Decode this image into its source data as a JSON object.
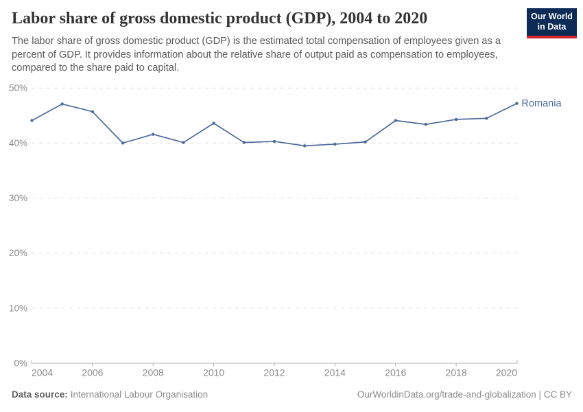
{
  "header": {
    "title": "Labor share of gross domestic product (GDP), 2004 to 2020",
    "subtitle": "The labor share of gross domestic product (GDP) is the estimated total compensation of employees given as a percent of GDP. It provides information about the relative share of output paid as compensation to employees, compared to the share paid to capital.",
    "logo": {
      "line1": "Our World",
      "line2": "in Data"
    }
  },
  "chart_data": {
    "type": "line",
    "title": "Labor share of gross domestic product (GDP), 2004 to 2020",
    "x": [
      2004,
      2005,
      2006,
      2007,
      2008,
      2009,
      2010,
      2011,
      2012,
      2013,
      2014,
      2015,
      2016,
      2017,
      2018,
      2019,
      2020
    ],
    "series": [
      {
        "name": "Romania",
        "color": "#4c6a9c",
        "values": [
          44.1,
          47.1,
          45.7,
          40.0,
          41.6,
          40.1,
          43.6,
          40.1,
          40.3,
          39.5,
          39.8,
          40.2,
          44.1,
          43.4,
          44.3,
          44.5,
          47.2
        ]
      }
    ],
    "x_ticks": [
      2004,
      2006,
      2008,
      2010,
      2012,
      2014,
      2016,
      2018,
      2020
    ],
    "y_ticks": [
      0,
      10,
      20,
      30,
      40,
      50
    ],
    "y_tick_suffix": "%",
    "xlim": [
      2004,
      2020
    ],
    "ylim": [
      0,
      50
    ],
    "xlabel": "",
    "ylabel": "",
    "grid": "horizontal-dashed",
    "legend": "line-end-label"
  },
  "footer": {
    "datasource_label": "Data source:",
    "datasource_value": "International Labour Organisation",
    "citation": "OurWorldinData.org/trade-and-globalization | CC BY"
  },
  "colors": {
    "line": "#4c6a9c",
    "grid": "#dddddd",
    "axis": "#b3b3b3",
    "tick_text": "#8a8a8a",
    "title_text": "#333333",
    "subtitle_text": "#5a5a5a",
    "logo_navy": "#0d2b57",
    "logo_red": "#d4262b"
  }
}
